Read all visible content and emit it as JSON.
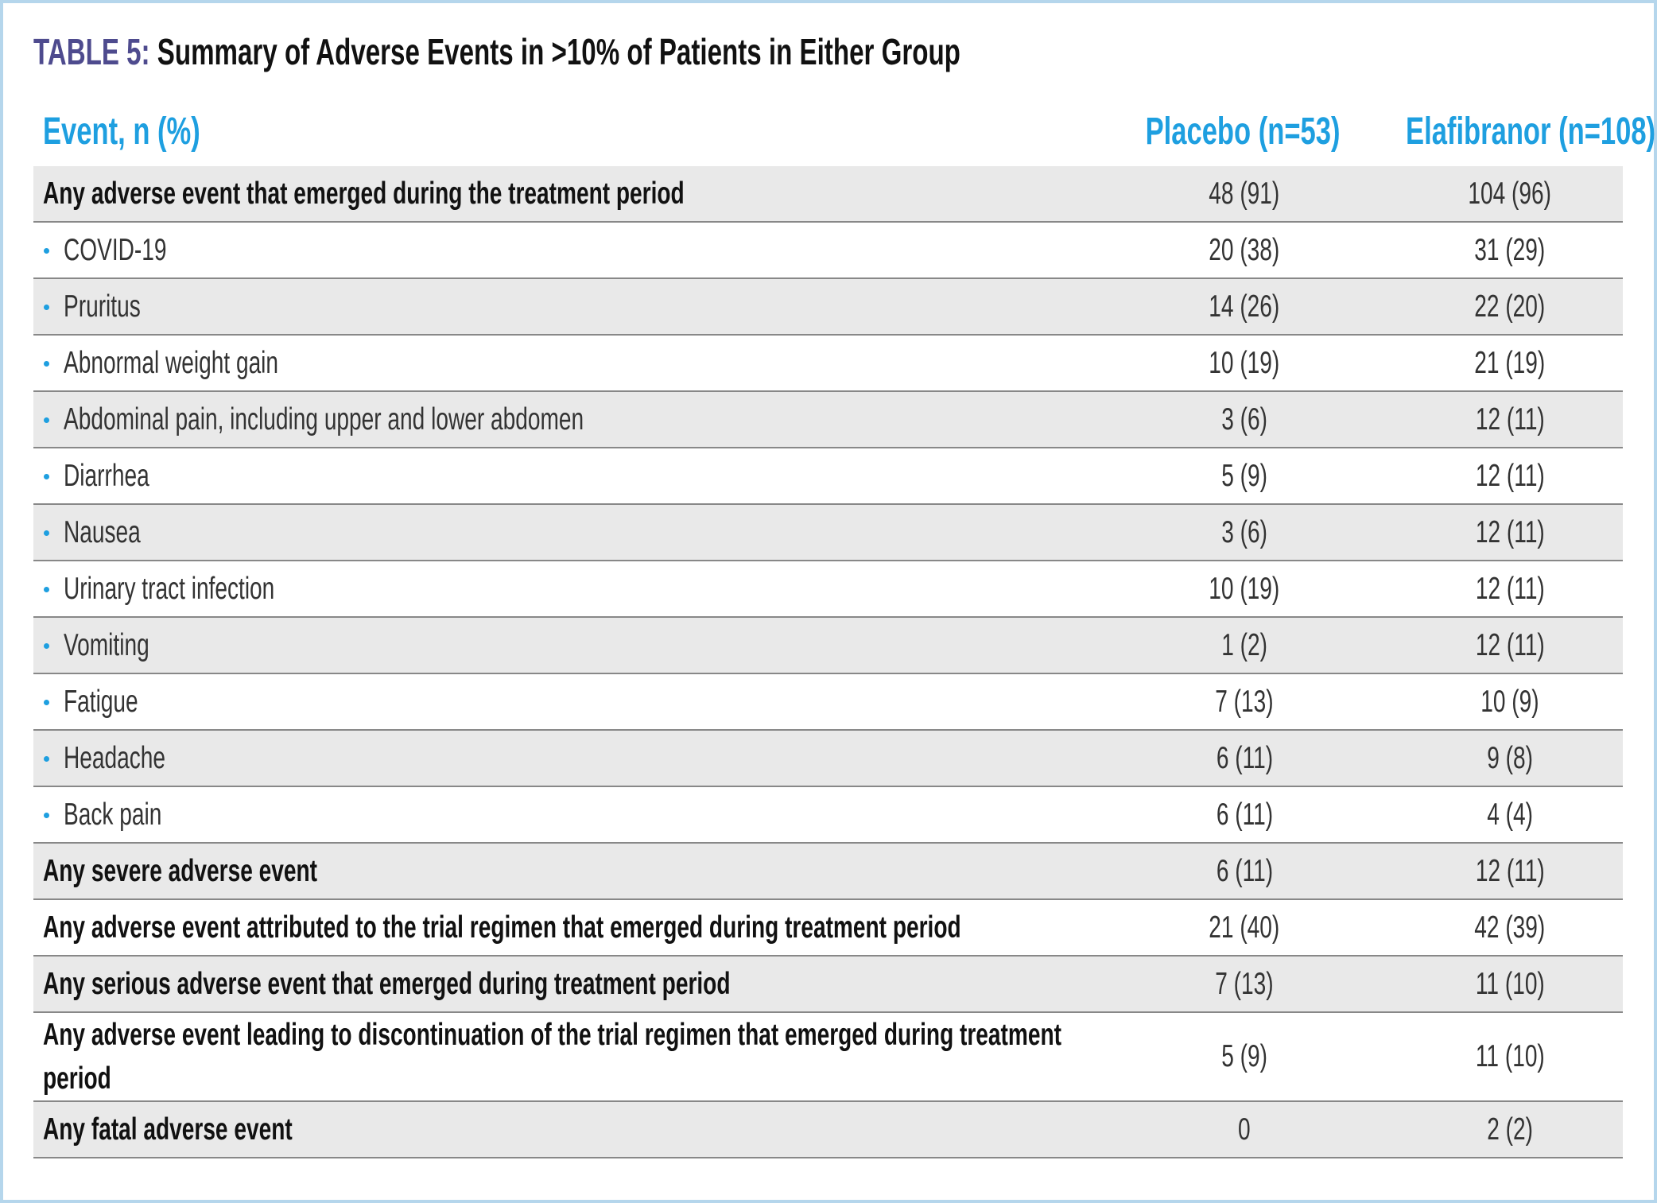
{
  "header": {
    "label": "TABLE 5:",
    "title": "Summary of Adverse Events in >10% of Patients in Either Group"
  },
  "table": {
    "columns": [
      "Event, n (%)",
      "Placebo (n=53)",
      "Elafibranor (n=108)"
    ],
    "rows": [
      {
        "label": "Any adverse event that emerged during the treatment period",
        "placebo": "48 (91)",
        "elafibranor": "104 (96)",
        "items": [
          {
            "label": "COVID-19",
            "placebo": "20 (38)",
            "elafibranor": "31 (29)"
          },
          {
            "label": "Pruritus",
            "placebo": "14 (26)",
            "elafibranor": "22 (20)"
          },
          {
            "label": "Abnormal weight gain",
            "placebo": "10 (19)",
            "elafibranor": "21 (19)"
          },
          {
            "label": "Abdominal pain, including upper and lower abdomen",
            "placebo": "3 (6)",
            "elafibranor": "12 (11)"
          },
          {
            "label": "Diarrhea",
            "placebo": "5 (9)",
            "elafibranor": "12 (11)"
          },
          {
            "label": "Nausea",
            "placebo": "3 (6)",
            "elafibranor": "12 (11)"
          },
          {
            "label": "Urinary tract infection",
            "placebo": "10 (19)",
            "elafibranor": "12 (11)"
          },
          {
            "label": "Vomiting",
            "placebo": "1 (2)",
            "elafibranor": "12 (11)"
          },
          {
            "label": "Fatigue",
            "placebo": "7 (13)",
            "elafibranor": "10 (9)"
          },
          {
            "label": "Headache",
            "placebo": "6 (11)",
            "elafibranor": "9 (8)"
          },
          {
            "label": "Back pain",
            "placebo": "6 (11)",
            "elafibranor": "4 (4)"
          }
        ]
      },
      {
        "label": "Any severe adverse event",
        "placebo": "6 (11)",
        "elafibranor": "12 (11)"
      },
      {
        "label": "Any adverse event attributed to the trial regimen that emerged during treatment period",
        "placebo": "21 (40)",
        "elafibranor": "42 (39)"
      },
      {
        "label": "Any serious adverse event that emerged during treatment period",
        "placebo": "7 (13)",
        "elafibranor": "11 (10)"
      },
      {
        "label": "Any adverse event leading to discontinuation of the trial regimen that emerged during treatment period",
        "placebo": "5 (9)",
        "elafibranor": "11 (10)"
      },
      {
        "label": "Any fatal adverse event",
        "placebo": "0",
        "elafibranor": "2 (2)"
      }
    ]
  }
}
